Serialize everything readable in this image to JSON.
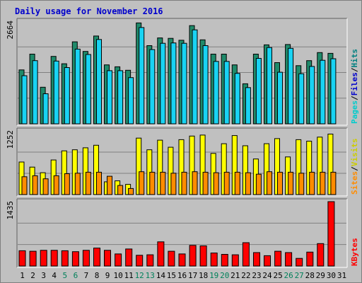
{
  "chart_data": {
    "type": "bar",
    "title": "Daily usage for November 2016",
    "categories": [
      "1",
      "2",
      "3",
      "4",
      "5",
      "6",
      "7",
      "8",
      "9",
      "10",
      "11",
      "12",
      "13",
      "14",
      "15",
      "16",
      "17",
      "18",
      "19",
      "20",
      "21",
      "22",
      "23",
      "24",
      "25",
      "26",
      "27",
      "28",
      "29",
      "30",
      "31"
    ],
    "weekend_days": [
      "5",
      "6",
      "12",
      "13",
      "19",
      "20",
      "26",
      "27"
    ],
    "panels": [
      {
        "ymax_label": "2664",
        "ymax": 2664,
        "series_labels": [
          {
            "text": "Hits",
            "color": "#008080"
          },
          {
            "text": "Files",
            "color": "#0000cc"
          },
          {
            "text": "Pages",
            "color": "#00cccc"
          }
        ],
        "series": [
          {
            "name": "Hits",
            "color": "#1f8a6a",
            "values": [
              1400,
              1810,
              950,
              1750,
              1560,
              2130,
              1880,
              2280,
              1530,
              1480,
              1390,
              2620,
              2030,
              2230,
              2220,
              2170,
              2550,
              2180,
              1810,
              1810,
              1530,
              1040,
              1810,
              2050,
              1590,
              2060,
              1510,
              1640,
              1850,
              1830,
              null
            ]
          },
          {
            "name": "Files",
            "color": "#19d3f3",
            "values": [
              1250,
              1640,
              780,
              1630,
              1460,
              1940,
              1800,
              2190,
              1380,
              1380,
              1200,
              2500,
              1930,
              2090,
              2100,
              2090,
              2440,
              2030,
              1620,
              1620,
              1310,
              940,
              1700,
              1980,
              1340,
              1960,
              1300,
              1490,
              1650,
              1690,
              null
            ]
          },
          {
            "name": "Pages",
            "color": "#19d3f3",
            "values": []
          }
        ]
      },
      {
        "ymax_label": "1252",
        "ymax": 1252,
        "series_labels": [
          {
            "text": "Visits",
            "color": "#cccc00"
          },
          {
            "text": "Sites",
            "color": "#ff8c00"
          }
        ],
        "series": [
          {
            "name": "Visits",
            "color": "#ffff00",
            "values": [
              640,
              540,
              430,
              680,
              860,
              880,
              920,
              970,
              250,
              270,
              200,
              1110,
              880,
              1070,
              930,
              1080,
              1150,
              1170,
              810,
              1000,
              1160,
              960,
              700,
              1000,
              1100,
              740,
              1080,
              1050,
              1130,
              1190,
              null
            ]
          },
          {
            "name": "Sites",
            "color": "#ff8c00",
            "values": [
              350,
              370,
              310,
              370,
              410,
              420,
              440,
              440,
              360,
              180,
              120,
              450,
              440,
              440,
              420,
              440,
              450,
              440,
              430,
              440,
              440,
              430,
              400,
              450,
              440,
              440,
              420,
              440,
              440,
              440,
              null
            ]
          }
        ]
      },
      {
        "ymax_label": "1435",
        "ymax": 1435,
        "series_labels": [
          {
            "text": "KBytes",
            "color": "#ff0000"
          }
        ],
        "series": [
          {
            "name": "KBytes",
            "color": "#ff0000",
            "values": [
              340,
              330,
              350,
              350,
              340,
              320,
              350,
              400,
              350,
              270,
              380,
              240,
              250,
              540,
              330,
              270,
              460,
              450,
              290,
              260,
              250,
              520,
              300,
              230,
              330,
              300,
              170,
              310,
              500,
              1435,
              null
            ]
          }
        ]
      }
    ]
  }
}
